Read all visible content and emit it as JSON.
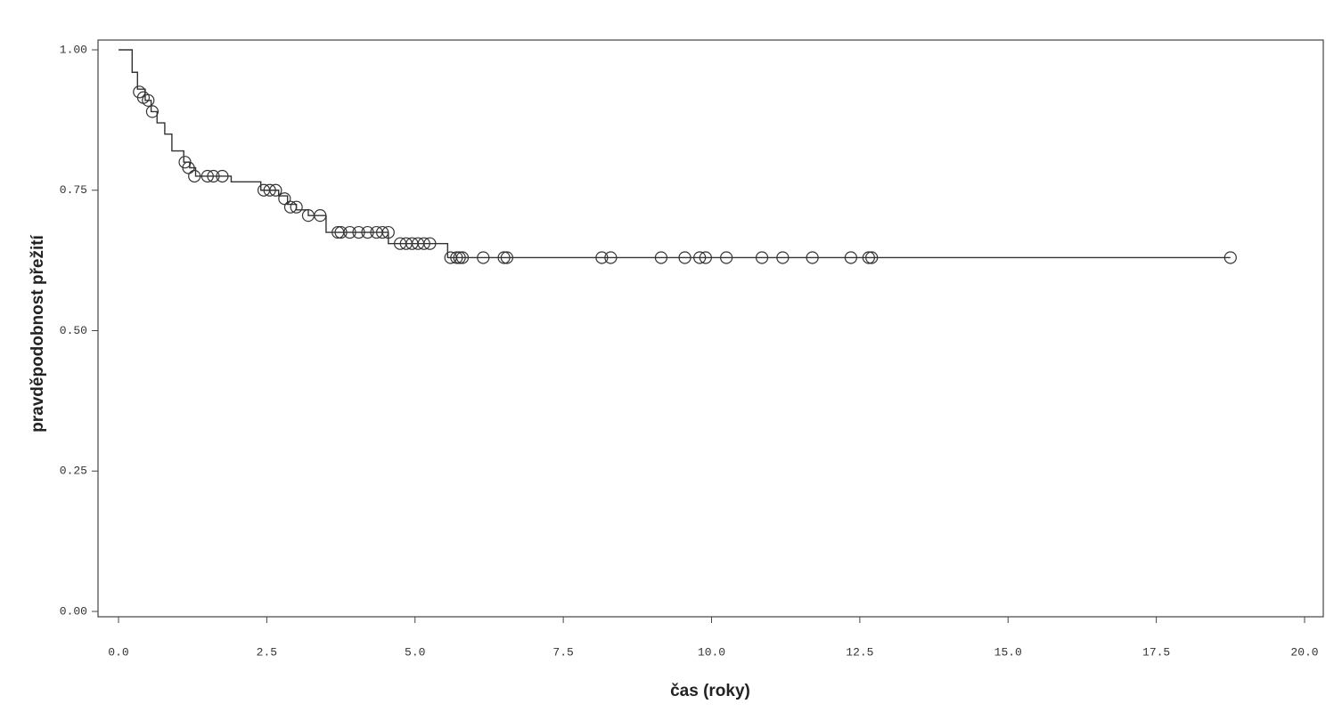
{
  "chart_data": {
    "type": "step",
    "x_label": "čas (roky)",
    "y_label": "pravděpodobnost přežití",
    "xlim": [
      0,
      20
    ],
    "ylim": [
      0,
      1
    ],
    "xticks": [
      {
        "value": 0,
        "label": "0.0"
      },
      {
        "value": 2.5,
        "label": "2.5"
      },
      {
        "value": 5,
        "label": "5.0"
      },
      {
        "value": 7.5,
        "label": "7.5"
      },
      {
        "value": 10,
        "label": "10.0"
      },
      {
        "value": 12.5,
        "label": "12.5"
      },
      {
        "value": 15,
        "label": "15.0"
      },
      {
        "value": 17.5,
        "label": "17.5"
      },
      {
        "value": 20,
        "label": "20.0"
      }
    ],
    "yticks": [
      {
        "value": 0,
        "label": "0.00"
      },
      {
        "value": 0.25,
        "label": "0.25"
      },
      {
        "value": 0.5,
        "label": "0.50"
      },
      {
        "value": 0.75,
        "label": "0.75"
      },
      {
        "value": 1,
        "label": "1.00"
      }
    ],
    "color": "#333333",
    "x": [
      0,
      0.23,
      0.32,
      0.45,
      0.55,
      0.65,
      0.78,
      0.9,
      1.1,
      1.2,
      1.3,
      1.9,
      2.4,
      2.7,
      2.85,
      3.0,
      3.2,
      3.5,
      4.55,
      5.55,
      18.75
    ],
    "values": [
      1.0,
      0.96,
      0.93,
      0.91,
      0.89,
      0.87,
      0.85,
      0.82,
      0.8,
      0.79,
      0.775,
      0.765,
      0.75,
      0.74,
      0.725,
      0.715,
      0.705,
      0.675,
      0.655,
      0.63,
      0.63
    ],
    "censored_x": [
      0.35,
      0.42,
      0.5,
      0.57,
      1.12,
      1.18,
      1.28,
      1.5,
      1.6,
      1.75,
      2.45,
      2.55,
      2.65,
      2.8,
      2.9,
      3.0,
      3.2,
      3.4,
      3.7,
      3.75,
      3.9,
      4.05,
      4.2,
      4.35,
      4.45,
      4.55,
      4.75,
      4.85,
      4.95,
      5.05,
      5.15,
      5.25,
      5.6,
      5.7,
      5.75,
      5.8,
      6.15,
      6.5,
      6.55,
      8.15,
      8.3,
      9.15,
      9.55,
      9.8,
      9.9,
      10.25,
      10.85,
      11.2,
      11.7,
      12.35,
      12.65,
      12.7,
      18.75
    ],
    "censored_values": [
      0.925,
      0.915,
      0.91,
      0.89,
      0.8,
      0.79,
      0.775,
      0.775,
      0.775,
      0.775,
      0.75,
      0.75,
      0.75,
      0.735,
      0.72,
      0.72,
      0.705,
      0.705,
      0.675,
      0.675,
      0.675,
      0.675,
      0.675,
      0.675,
      0.675,
      0.675,
      0.655,
      0.655,
      0.655,
      0.655,
      0.655,
      0.655,
      0.63,
      0.63,
      0.63,
      0.63,
      0.63,
      0.63,
      0.63,
      0.63,
      0.63,
      0.63,
      0.63,
      0.63,
      0.63,
      0.63,
      0.63,
      0.63,
      0.63,
      0.63,
      0.63,
      0.63,
      0.63
    ]
  }
}
